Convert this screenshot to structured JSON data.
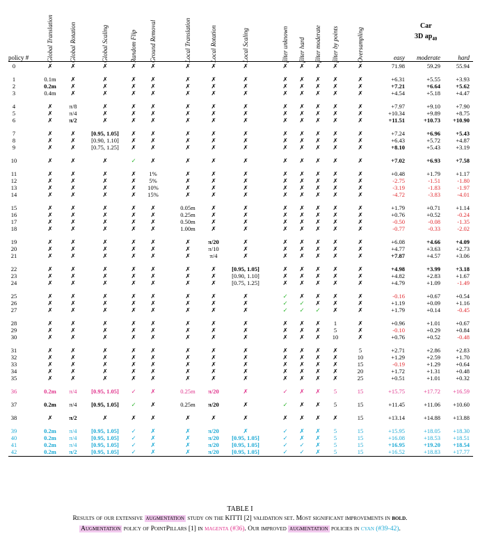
{
  "columns": {
    "policy": "policy #",
    "vertical": [
      "Global Translation",
      "Global Rotation",
      "Global Scaling",
      "Random Flip",
      "Ground Removal",
      "Local Translation",
      "Local Rotation",
      "Local Scaling",
      "filter unknown",
      "filter hard",
      "filter moderate",
      "filter by points",
      "Oversampling"
    ],
    "car": "Car",
    "ap": "3D ap",
    "ap_sub": "40",
    "easy": "easy",
    "moderate": "moderate",
    "hard": "hard"
  },
  "groups": [
    {
      "rows": [
        {
          "id": "0",
          "cells": [
            "✗",
            "✗",
            "✗",
            "✗",
            "✗",
            "✗",
            "✗",
            "✗",
            "✗",
            "✗",
            "✗",
            "✗",
            "✗"
          ],
          "easy": "71.98",
          "mod": "59.29",
          "hard": "55.94"
        }
      ]
    },
    {
      "rows": [
        {
          "id": "1",
          "cells": [
            "0.1m",
            "✗",
            "✗",
            "✗",
            "✗",
            "✗",
            "✗",
            "✗",
            "✗",
            "✗",
            "✗",
            "✗",
            "✗"
          ],
          "easy": "+6.31",
          "mod": "+5.55",
          "hard": "+3.93"
        },
        {
          "id": "2",
          "cells": [
            "0.2m",
            "✗",
            "✗",
            "✗",
            "✗",
            "✗",
            "✗",
            "✗",
            "✗",
            "✗",
            "✗",
            "✗",
            "✗"
          ],
          "easy": "+7.21",
          "mod": "+6.64",
          "hard": "+5.62",
          "bold": [
            0,
            "e",
            "m",
            "h"
          ]
        },
        {
          "id": "3",
          "cells": [
            "0.4m",
            "✗",
            "✗",
            "✗",
            "✗",
            "✗",
            "✗",
            "✗",
            "✗",
            "✗",
            "✗",
            "✗",
            "✗"
          ],
          "easy": "+4.54",
          "mod": "+5.18",
          "hard": "+4.47"
        }
      ]
    },
    {
      "rows": [
        {
          "id": "4",
          "cells": [
            "✗",
            "π/8",
            "✗",
            "✗",
            "✗",
            "✗",
            "✗",
            "✗",
            "✗",
            "✗",
            "✗",
            "✗",
            "✗"
          ],
          "easy": "+7.97",
          "mod": "+9.10",
          "hard": "+7.90"
        },
        {
          "id": "5",
          "cells": [
            "✗",
            "π/4",
            "✗",
            "✗",
            "✗",
            "✗",
            "✗",
            "✗",
            "✗",
            "✗",
            "✗",
            "✗",
            "✗"
          ],
          "easy": "+10.34",
          "mod": "+9.89",
          "hard": "+8.75"
        },
        {
          "id": "6",
          "cells": [
            "✗",
            "π/2",
            "✗",
            "✗",
            "✗",
            "✗",
            "✗",
            "✗",
            "✗",
            "✗",
            "✗",
            "✗",
            "✗"
          ],
          "easy": "+11.51",
          "mod": "+10.73",
          "hard": "+10.90",
          "bold": [
            1,
            "e",
            "m",
            "h"
          ]
        }
      ]
    },
    {
      "rows": [
        {
          "id": "7",
          "cells": [
            "✗",
            "✗",
            "[0.95, 1.05]",
            "✗",
            "✗",
            "✗",
            "✗",
            "✗",
            "✗",
            "✗",
            "✗",
            "✗",
            "✗"
          ],
          "easy": "+7.24",
          "mod": "+6.96",
          "hard": "+5.43",
          "bold": [
            2,
            "m",
            "h"
          ]
        },
        {
          "id": "8",
          "cells": [
            "✗",
            "✗",
            "[0.90, 1.10]",
            "✗",
            "✗",
            "✗",
            "✗",
            "✗",
            "✗",
            "✗",
            "✗",
            "✗",
            "✗"
          ],
          "easy": "+6.43",
          "mod": "+5.72",
          "hard": "+4.87"
        },
        {
          "id": "9",
          "cells": [
            "✗",
            "✗",
            "[0.75, 1.25]",
            "✗",
            "✗",
            "✗",
            "✗",
            "✗",
            "✗",
            "✗",
            "✗",
            "✗",
            "✗"
          ],
          "easy": "+8.10",
          "mod": "+5.43",
          "hard": "+3.19",
          "bold": [
            "e"
          ]
        }
      ]
    },
    {
      "rows": [
        {
          "id": "10",
          "cells": [
            "✗",
            "✗",
            "✗",
            "✓",
            "✗",
            "✗",
            "✗",
            "✗",
            "✗",
            "✗",
            "✗",
            "✗",
            "✗"
          ],
          "easy": "+7.02",
          "mod": "+6.93",
          "hard": "+7.58",
          "bold": [
            "e",
            "m",
            "h"
          ]
        }
      ]
    },
    {
      "rows": [
        {
          "id": "11",
          "cells": [
            "✗",
            "✗",
            "✗",
            "✗",
            "1%",
            "✗",
            "✗",
            "✗",
            "✗",
            "✗",
            "✗",
            "✗",
            "✗"
          ],
          "easy": "+0.48",
          "mod": "+1.79",
          "hard": "+1.17"
        },
        {
          "id": "12",
          "cells": [
            "✗",
            "✗",
            "✗",
            "✗",
            "5%",
            "✗",
            "✗",
            "✗",
            "✗",
            "✗",
            "✗",
            "✗",
            "✗"
          ],
          "easy": "-2.75",
          "mod": "-1.51",
          "hard": "-1.80"
        },
        {
          "id": "13",
          "cells": [
            "✗",
            "✗",
            "✗",
            "✗",
            "10%",
            "✗",
            "✗",
            "✗",
            "✗",
            "✗",
            "✗",
            "✗",
            "✗"
          ],
          "easy": "-3.19",
          "mod": "-1.83",
          "hard": "-1.97"
        },
        {
          "id": "14",
          "cells": [
            "✗",
            "✗",
            "✗",
            "✗",
            "15%",
            "✗",
            "✗",
            "✗",
            "✗",
            "✗",
            "✗",
            "✗",
            "✗"
          ],
          "easy": "-4.72",
          "mod": "-3.83",
          "hard": "-4.01"
        }
      ]
    },
    {
      "rows": [
        {
          "id": "15",
          "cells": [
            "✗",
            "✗",
            "✗",
            "✗",
            "✗",
            "0.05m",
            "✗",
            "✗",
            "✗",
            "✗",
            "✗",
            "✗",
            "✗"
          ],
          "easy": "+1.79",
          "mod": "+0.71",
          "hard": "+1.14"
        },
        {
          "id": "16",
          "cells": [
            "✗",
            "✗",
            "✗",
            "✗",
            "✗",
            "0.25m",
            "✗",
            "✗",
            "✗",
            "✗",
            "✗",
            "✗",
            "✗"
          ],
          "easy": "+0.76",
          "mod": "+0.52",
          "hard": "-0.24"
        },
        {
          "id": "17",
          "cells": [
            "✗",
            "✗",
            "✗",
            "✗",
            "✗",
            "0.50m",
            "✗",
            "✗",
            "✗",
            "✗",
            "✗",
            "✗",
            "✗"
          ],
          "easy": "-0.50",
          "mod": "-0.08",
          "hard": "-1.35"
        },
        {
          "id": "18",
          "cells": [
            "✗",
            "✗",
            "✗",
            "✗",
            "✗",
            "1.00m",
            "✗",
            "✗",
            "✗",
            "✗",
            "✗",
            "✗",
            "✗"
          ],
          "easy": "-0.77",
          "mod": "-0.33",
          "hard": "-2.02"
        }
      ]
    },
    {
      "rows": [
        {
          "id": "19",
          "cells": [
            "✗",
            "✗",
            "✗",
            "✗",
            "✗",
            "✗",
            "π/20",
            "✗",
            "✗",
            "✗",
            "✗",
            "✗",
            "✗"
          ],
          "easy": "+6.08",
          "mod": "+4.66",
          "hard": "+4.09",
          "bold": [
            6,
            "m",
            "h"
          ]
        },
        {
          "id": "20",
          "cells": [
            "✗",
            "✗",
            "✗",
            "✗",
            "✗",
            "✗",
            "π/10",
            "✗",
            "✗",
            "✗",
            "✗",
            "✗",
            "✗"
          ],
          "easy": "+4.77",
          "mod": "+3.63",
          "hard": "+2.73"
        },
        {
          "id": "21",
          "cells": [
            "✗",
            "✗",
            "✗",
            "✗",
            "✗",
            "✗",
            "π/4",
            "✗",
            "✗",
            "✗",
            "✗",
            "✗",
            "✗"
          ],
          "easy": "+7.87",
          "mod": "+4.57",
          "hard": "+3.06",
          "bold": [
            "e"
          ]
        }
      ]
    },
    {
      "rows": [
        {
          "id": "22",
          "cells": [
            "✗",
            "✗",
            "✗",
            "✗",
            "✗",
            "✗",
            "✗",
            "[0.95, 1.05]",
            "✗",
            "✗",
            "✗",
            "✗",
            "✗"
          ],
          "easy": "+4.98",
          "mod": "+3.99",
          "hard": "+3.18",
          "bold": [
            7,
            "e",
            "m",
            "h"
          ]
        },
        {
          "id": "23",
          "cells": [
            "✗",
            "✗",
            "✗",
            "✗",
            "✗",
            "✗",
            "✗",
            "[0.90, 1.10]",
            "✗",
            "✗",
            "✗",
            "✗",
            "✗"
          ],
          "easy": "+4.82",
          "mod": "+2.83",
          "hard": "+1.67"
        },
        {
          "id": "24",
          "cells": [
            "✗",
            "✗",
            "✗",
            "✗",
            "✗",
            "✗",
            "✗",
            "[0.75, 1.25]",
            "✗",
            "✗",
            "✗",
            "✗",
            "✗"
          ],
          "easy": "+4.79",
          "mod": "+1.09",
          "hard": "-1.49"
        }
      ]
    },
    {
      "rows": [
        {
          "id": "25",
          "cells": [
            "✗",
            "✗",
            "✗",
            "✗",
            "✗",
            "✗",
            "✗",
            "✗",
            "✓",
            "✗",
            "✗",
            "✗",
            "✗"
          ],
          "easy": "-0.16",
          "mod": "+0.67",
          "hard": "+0.54"
        },
        {
          "id": "26",
          "cells": [
            "✗",
            "✗",
            "✗",
            "✗",
            "✗",
            "✗",
            "✗",
            "✗",
            "✓",
            "✓",
            "✗",
            "✗",
            "✗"
          ],
          "easy": "+1.19",
          "mod": "+0.09",
          "hard": "+1.16"
        },
        {
          "id": "27",
          "cells": [
            "✗",
            "✗",
            "✗",
            "✗",
            "✗",
            "✗",
            "✗",
            "✗",
            "✓",
            "✓",
            "✓",
            "✗",
            "✗"
          ],
          "easy": "+1.79",
          "mod": "+0.14",
          "hard": "-0.45"
        }
      ]
    },
    {
      "rows": [
        {
          "id": "28",
          "cells": [
            "✗",
            "✗",
            "✗",
            "✗",
            "✗",
            "✗",
            "✗",
            "✗",
            "✗",
            "✗",
            "✗",
            "1",
            "✗"
          ],
          "easy": "+0.96",
          "mod": "+1.01",
          "hard": "+0.67"
        },
        {
          "id": "29",
          "cells": [
            "✗",
            "✗",
            "✗",
            "✗",
            "✗",
            "✗",
            "✗",
            "✗",
            "✗",
            "✗",
            "✗",
            "5",
            "✗"
          ],
          "easy": "-0.10",
          "mod": "+0.29",
          "hard": "+0.84"
        },
        {
          "id": "30",
          "cells": [
            "✗",
            "✗",
            "✗",
            "✗",
            "✗",
            "✗",
            "✗",
            "✗",
            "✗",
            "✗",
            "✗",
            "10",
            "✗"
          ],
          "easy": "+0.76",
          "mod": "+0.52",
          "hard": "-0.48"
        }
      ]
    },
    {
      "rows": [
        {
          "id": "31",
          "cells": [
            "✗",
            "✗",
            "✗",
            "✗",
            "✗",
            "✗",
            "✗",
            "✗",
            "✗",
            "✗",
            "✗",
            "✗",
            "5"
          ],
          "easy": "+2.71",
          "mod": "+2.86",
          "hard": "+2.83"
        },
        {
          "id": "32",
          "cells": [
            "✗",
            "✗",
            "✗",
            "✗",
            "✗",
            "✗",
            "✗",
            "✗",
            "✗",
            "✗",
            "✗",
            "✗",
            "10"
          ],
          "easy": "+1.29",
          "mod": "+2.59",
          "hard": "+1.70"
        },
        {
          "id": "33",
          "cells": [
            "✗",
            "✗",
            "✗",
            "✗",
            "✗",
            "✗",
            "✗",
            "✗",
            "✗",
            "✗",
            "✗",
            "✗",
            "15"
          ],
          "easy": "-0.19",
          "mod": "+1.29",
          "hard": "+0.64"
        },
        {
          "id": "34",
          "cells": [
            "✗",
            "✗",
            "✗",
            "✗",
            "✗",
            "✗",
            "✗",
            "✗",
            "✗",
            "✗",
            "✗",
            "✗",
            "20"
          ],
          "easy": "+1.72",
          "mod": "+1.31",
          "hard": "+0.48"
        },
        {
          "id": "35",
          "cells": [
            "✗",
            "✗",
            "✗",
            "✗",
            "✗",
            "✗",
            "✗",
            "✗",
            "✗",
            "✗",
            "✗",
            "✗",
            "25"
          ],
          "easy": "+0.51",
          "mod": "+1.01",
          "hard": "+0.32"
        }
      ]
    },
    {
      "rows": [
        {
          "id": "36",
          "color": "magenta",
          "cells": [
            "0.2m",
            "π/4",
            "[0.95, 1.05]",
            "✓",
            "✗",
            "0.25m",
            "π/20",
            "✗",
            "✓",
            "✗",
            "✗",
            "5",
            "15"
          ],
          "easy": "+15.75",
          "mod": "+17.72",
          "hard": "+16.59",
          "bold": [
            0,
            2,
            6
          ]
        }
      ]
    },
    {
      "rows": [
        {
          "id": "37",
          "cells": [
            "0.2m",
            "π/4",
            "[0.95, 1.05]",
            "✓",
            "✗",
            "0.25m",
            "π/20",
            "✗",
            "✓",
            "✗",
            "✗",
            "5",
            "15"
          ],
          "easy": "+11.45",
          "mod": "+11.06",
          "hard": "+10.60",
          "bold": [
            0,
            2,
            6
          ]
        }
      ]
    },
    {
      "rows": [
        {
          "id": "38",
          "cells": [
            "✗",
            "π/2",
            "✗",
            "✗",
            "✗",
            "✗",
            "✗",
            "✗",
            "✗",
            "✗",
            "✗",
            "✗",
            "15"
          ],
          "easy": "+13.14",
          "mod": "+14.88",
          "hard": "+13.88",
          "bold": [
            1
          ]
        }
      ]
    },
    {
      "rows": [
        {
          "id": "39",
          "color": "cyan",
          "cells": [
            "0.2m",
            "π/4",
            "[0.95, 1.05]",
            "✓",
            "✗",
            "✗",
            "π/20",
            "✗",
            "✓",
            "✗",
            "✗",
            "5",
            "15"
          ],
          "easy": "+15.95",
          "mod": "+18.05",
          "hard": "+18.30",
          "bold": [
            0,
            2,
            6
          ]
        },
        {
          "id": "40",
          "color": "cyan",
          "cells": [
            "0.2m",
            "π/4",
            "[0.95, 1.05]",
            "✓",
            "✗",
            "✗",
            "π/20",
            "[0.95, 1.05]",
            "✓",
            "✗",
            "✗",
            "5",
            "15"
          ],
          "easy": "+16.08",
          "mod": "+18.53",
          "hard": "+18.51",
          "bold": [
            0,
            2,
            6,
            7
          ]
        },
        {
          "id": "41",
          "color": "cyan",
          "cells": [
            "0.2m",
            "π/4",
            "[0.95, 1.05]",
            "✓",
            "✗",
            "✗",
            "π/20",
            "[0.95, 1.05]",
            "✓",
            "✓",
            "✗",
            "5",
            "15"
          ],
          "easy": "+16.95",
          "mod": "+19.20",
          "hard": "+18.54",
          "bold": [
            0,
            2,
            6,
            7,
            "e",
            "m",
            "h"
          ]
        },
        {
          "id": "42",
          "color": "cyan",
          "cells": [
            "0.2m",
            "π/2",
            "[0.95, 1.05]",
            "✓",
            "✗",
            "✗",
            "π/20",
            "[0.95, 1.05]",
            "✓",
            "✓",
            "✗",
            "5",
            "15"
          ],
          "easy": "+16.52",
          "mod": "+18.83",
          "hard": "+17.77",
          "bold": [
            0,
            1,
            2,
            6,
            7
          ]
        }
      ]
    }
  ],
  "caption": {
    "title": "TABLE I",
    "line2_a": "Results of our extensive ",
    "line2_hl": "augmentation",
    "line2_b": " study on the KITTI [2] validation set. Most significant improvements in ",
    "line2_bold": "bold",
    "line2_c": ".",
    "line3_hl1": "Augmentation",
    "line3_a": " policy of PointPillars [1] in ",
    "line3_magenta": "magenta (#36)",
    "line3_b": ". Our improved ",
    "line3_hl2": "augmentation",
    "line3_c": " policies in ",
    "line3_cyan": "cyan (#39-42)",
    "line3_d": "."
  }
}
